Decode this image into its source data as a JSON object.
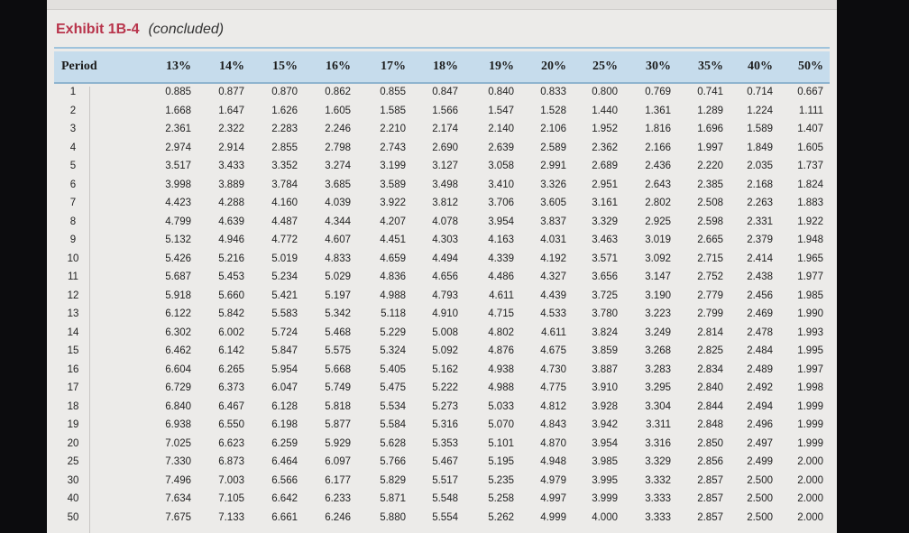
{
  "caption": {
    "label": "Exhibit 1B-4",
    "sub": "(concluded)"
  },
  "table": {
    "headers": [
      "Period",
      "13%",
      "14%",
      "15%",
      "16%",
      "17%",
      "18%",
      "19%",
      "20%",
      "25%",
      "30%",
      "35%",
      "40%",
      "50%"
    ],
    "rows": [
      [
        "1",
        "0.885",
        "0.877",
        "0.870",
        "0.862",
        "0.855",
        "0.847",
        "0.840",
        "0.833",
        "0.800",
        "0.769",
        "0.741",
        "0.714",
        "0.667"
      ],
      [
        "2",
        "1.668",
        "1.647",
        "1.626",
        "1.605",
        "1.585",
        "1.566",
        "1.547",
        "1.528",
        "1.440",
        "1.361",
        "1.289",
        "1.224",
        "1.111"
      ],
      [
        "3",
        "2.361",
        "2.322",
        "2.283",
        "2.246",
        "2.210",
        "2.174",
        "2.140",
        "2.106",
        "1.952",
        "1.816",
        "1.696",
        "1.589",
        "1.407"
      ],
      [
        "4",
        "2.974",
        "2.914",
        "2.855",
        "2.798",
        "2.743",
        "2.690",
        "2.639",
        "2.589",
        "2.362",
        "2.166",
        "1.997",
        "1.849",
        "1.605"
      ],
      [
        "5",
        "3.517",
        "3.433",
        "3.352",
        "3.274",
        "3.199",
        "3.127",
        "3.058",
        "2.991",
        "2.689",
        "2.436",
        "2.220",
        "2.035",
        "1.737"
      ],
      [
        "6",
        "3.998",
        "3.889",
        "3.784",
        "3.685",
        "3.589",
        "3.498",
        "3.410",
        "3.326",
        "2.951",
        "2.643",
        "2.385",
        "2.168",
        "1.824"
      ],
      [
        "7",
        "4.423",
        "4.288",
        "4.160",
        "4.039",
        "3.922",
        "3.812",
        "3.706",
        "3.605",
        "3.161",
        "2.802",
        "2.508",
        "2.263",
        "1.883"
      ],
      [
        "8",
        "4.799",
        "4.639",
        "4.487",
        "4.344",
        "4.207",
        "4.078",
        "3.954",
        "3.837",
        "3.329",
        "2.925",
        "2.598",
        "2.331",
        "1.922"
      ],
      [
        "9",
        "5.132",
        "4.946",
        "4.772",
        "4.607",
        "4.451",
        "4.303",
        "4.163",
        "4.031",
        "3.463",
        "3.019",
        "2.665",
        "2.379",
        "1.948"
      ],
      [
        "10",
        "5.426",
        "5.216",
        "5.019",
        "4.833",
        "4.659",
        "4.494",
        "4.339",
        "4.192",
        "3.571",
        "3.092",
        "2.715",
        "2.414",
        "1.965"
      ],
      [
        "11",
        "5.687",
        "5.453",
        "5.234",
        "5.029",
        "4.836",
        "4.656",
        "4.486",
        "4.327",
        "3.656",
        "3.147",
        "2.752",
        "2.438",
        "1.977"
      ],
      [
        "12",
        "5.918",
        "5.660",
        "5.421",
        "5.197",
        "4.988",
        "4.793",
        "4.611",
        "4.439",
        "3.725",
        "3.190",
        "2.779",
        "2.456",
        "1.985"
      ],
      [
        "13",
        "6.122",
        "5.842",
        "5.583",
        "5.342",
        "5.118",
        "4.910",
        "4.715",
        "4.533",
        "3.780",
        "3.223",
        "2.799",
        "2.469",
        "1.990"
      ],
      [
        "14",
        "6.302",
        "6.002",
        "5.724",
        "5.468",
        "5.229",
        "5.008",
        "4.802",
        "4.611",
        "3.824",
        "3.249",
        "2.814",
        "2.478",
        "1.993"
      ],
      [
        "15",
        "6.462",
        "6.142",
        "5.847",
        "5.575",
        "5.324",
        "5.092",
        "4.876",
        "4.675",
        "3.859",
        "3.268",
        "2.825",
        "2.484",
        "1.995"
      ],
      [
        "16",
        "6.604",
        "6.265",
        "5.954",
        "5.668",
        "5.405",
        "5.162",
        "4.938",
        "4.730",
        "3.887",
        "3.283",
        "2.834",
        "2.489",
        "1.997"
      ],
      [
        "17",
        "6.729",
        "6.373",
        "6.047",
        "5.749",
        "5.475",
        "5.222",
        "4.988",
        "4.775",
        "3.910",
        "3.295",
        "2.840",
        "2.492",
        "1.998"
      ],
      [
        "18",
        "6.840",
        "6.467",
        "6.128",
        "5.818",
        "5.534",
        "5.273",
        "5.033",
        "4.812",
        "3.928",
        "3.304",
        "2.844",
        "2.494",
        "1.999"
      ],
      [
        "19",
        "6.938",
        "6.550",
        "6.198",
        "5.877",
        "5.584",
        "5.316",
        "5.070",
        "4.843",
        "3.942",
        "3.311",
        "2.848",
        "2.496",
        "1.999"
      ],
      [
        "20",
        "7.025",
        "6.623",
        "6.259",
        "5.929",
        "5.628",
        "5.353",
        "5.101",
        "4.870",
        "3.954",
        "3.316",
        "2.850",
        "2.497",
        "1.999"
      ],
      [
        "25",
        "7.330",
        "6.873",
        "6.464",
        "6.097",
        "5.766",
        "5.467",
        "5.195",
        "4.948",
        "3.985",
        "3.329",
        "2.856",
        "2.499",
        "2.000"
      ],
      [
        "30",
        "7.496",
        "7.003",
        "6.566",
        "6.177",
        "5.829",
        "5.517",
        "5.235",
        "4.979",
        "3.995",
        "3.332",
        "2.857",
        "2.500",
        "2.000"
      ],
      [
        "40",
        "7.634",
        "7.105",
        "6.642",
        "6.233",
        "5.871",
        "5.548",
        "5.258",
        "4.997",
        "3.999",
        "3.333",
        "2.857",
        "2.500",
        "2.000"
      ],
      [
        "50",
        "7.675",
        "7.133",
        "6.661",
        "6.246",
        "5.880",
        "5.554",
        "5.262",
        "4.999",
        "4.000",
        "3.333",
        "2.857",
        "2.500",
        "2.000"
      ]
    ]
  }
}
